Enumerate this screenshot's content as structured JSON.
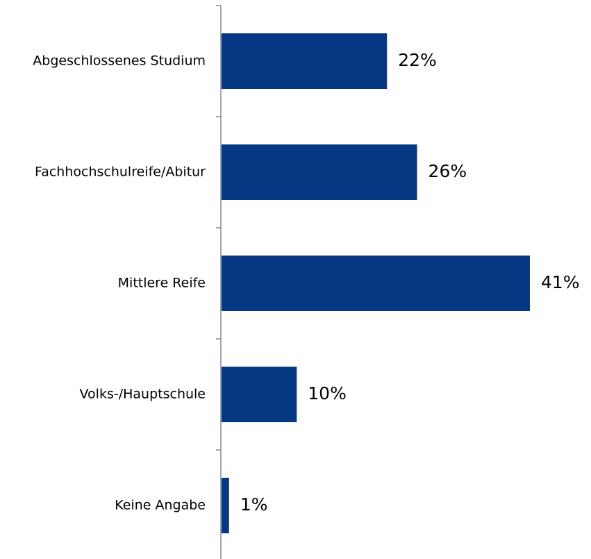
{
  "chart_data": {
    "type": "bar",
    "orientation": "horizontal",
    "title": "",
    "xlabel": "",
    "ylabel": "",
    "categories": [
      "Abgeschlossenes Studium",
      "Fachhochschulreife/Abitur",
      "Mittlere Reife",
      "Volks-/Hauptschule",
      "Keine Angabe"
    ],
    "values": [
      22,
      26,
      41,
      10,
      1
    ],
    "value_labels": [
      "22%",
      "26%",
      "41%",
      "10%",
      "1%"
    ],
    "unit": "%",
    "xlim": [
      0,
      41
    ],
    "grid": false,
    "legend": "none",
    "bar_color": "#043882"
  }
}
